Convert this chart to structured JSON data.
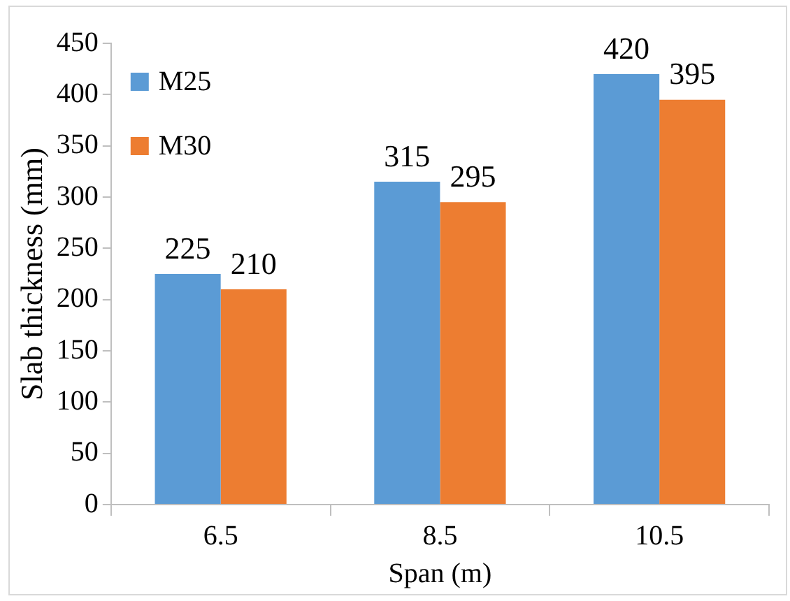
{
  "chart_data": {
    "type": "bar",
    "xlabel": "Span (m)",
    "ylabel": "Slab thickness (mm)",
    "categories": [
      "6.5",
      "8.5",
      "10.5"
    ],
    "series": [
      {
        "name": "M25",
        "color": "#5b9bd5",
        "values": [
          225,
          315,
          420
        ]
      },
      {
        "name": "M30",
        "color": "#ed7d31",
        "values": [
          210,
          295,
          395
        ]
      }
    ],
    "ylim": [
      0,
      450
    ],
    "yticks": [
      0,
      50,
      100,
      150,
      200,
      250,
      300,
      350,
      400,
      450
    ],
    "grid": false,
    "legend": "top left",
    "data_labels": true
  }
}
